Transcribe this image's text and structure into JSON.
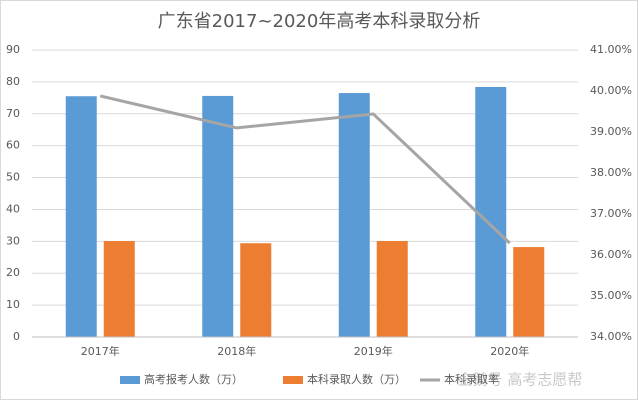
{
  "chart_data": {
    "type": "bar",
    "title": "广东省2017~2020年高考本科录取分析",
    "categories": [
      "2017年",
      "2018年",
      "2019年",
      "2020年"
    ],
    "series": [
      {
        "name": "高考报考人数（万）",
        "type": "bar",
        "color": "#5b9bd5",
        "values": [
          75.5,
          75.6,
          76.5,
          78.4
        ]
      },
      {
        "name": "本科录取人数（万）",
        "type": "bar",
        "color": "#ed7d31",
        "values": [
          30.1,
          29.4,
          30.1,
          28.2
        ]
      },
      {
        "name": "本科录取率",
        "type": "line",
        "axis": "y2",
        "color": "#a5a5a5",
        "values": [
          39.88,
          39.1,
          39.44,
          36.29
        ]
      }
    ],
    "ylim": [
      0,
      90
    ],
    "yticks": [
      0,
      10,
      20,
      30,
      40,
      50,
      60,
      70,
      80,
      90
    ],
    "y2lim": [
      34,
      41
    ],
    "y2ticks": [
      {
        "value": 34,
        "label": "34.00%"
      },
      {
        "value": 35,
        "label": "35.00%"
      },
      {
        "value": 36,
        "label": "36.00%"
      },
      {
        "value": 37,
        "label": "37.00%"
      },
      {
        "value": 38,
        "label": "38.00%"
      },
      {
        "value": 39,
        "label": "39.00%"
      },
      {
        "value": 40,
        "label": "40.00%"
      },
      {
        "value": 41,
        "label": "41.00%"
      }
    ],
    "grid": true,
    "legend": "bottom",
    "watermark": "企鹅号 高考志愿帮"
  }
}
